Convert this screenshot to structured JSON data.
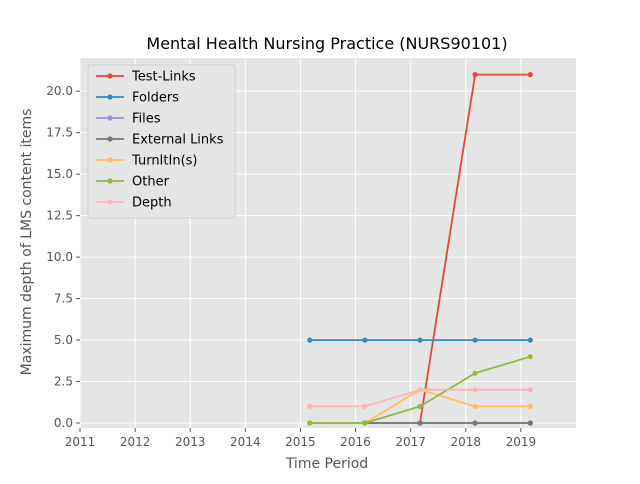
{
  "chart_data": {
    "type": "line",
    "title": "Mental Health Nursing Practice (NURS90101)",
    "xlabel": "Time Period",
    "ylabel": "Maximum depth of LMS content items",
    "xlim": [
      2011,
      2020
    ],
    "ylim": [
      -0.3,
      22
    ],
    "x_ticks": [
      2011,
      2012,
      2013,
      2014,
      2015,
      2016,
      2017,
      2018,
      2019
    ],
    "x_tick_labels": [
      "2011",
      "2012",
      "2013",
      "2014",
      "2015",
      "2016",
      "2017",
      "2018",
      "2019"
    ],
    "y_ticks": [
      0,
      2.5,
      5,
      7.5,
      10,
      12.5,
      15,
      17.5,
      20
    ],
    "y_tick_labels": [
      "0.0",
      "2.5",
      "5.0",
      "7.5",
      "10.0",
      "12.5",
      "15.0",
      "17.5",
      "20.0"
    ],
    "x": [
      2015.17,
      2016.17,
      2017.17,
      2018.17,
      2019.17
    ],
    "grid": true,
    "legend_position": "top-left",
    "background": "#e5e5e5",
    "series": [
      {
        "name": "Test-Links",
        "color": "#e24a33",
        "values": [
          null,
          null,
          0,
          21,
          21
        ]
      },
      {
        "name": "Folders",
        "color": "#348abd",
        "values": [
          5,
          5,
          5,
          5,
          5
        ]
      },
      {
        "name": "Files",
        "color": "#988ed5",
        "values": [
          0,
          0,
          0,
          0,
          0
        ]
      },
      {
        "name": "External Links",
        "color": "#777777",
        "values": [
          0,
          0,
          0,
          0,
          0
        ]
      },
      {
        "name": "TurnItIn(s)",
        "color": "#fbc15e",
        "values": [
          0,
          0,
          2,
          1,
          1
        ]
      },
      {
        "name": "Other",
        "color": "#8eba42",
        "values": [
          0,
          0,
          1,
          3,
          4
        ]
      },
      {
        "name": "Depth",
        "color": "#ffb5b8",
        "values": [
          1,
          1,
          2,
          2,
          2
        ]
      }
    ]
  }
}
